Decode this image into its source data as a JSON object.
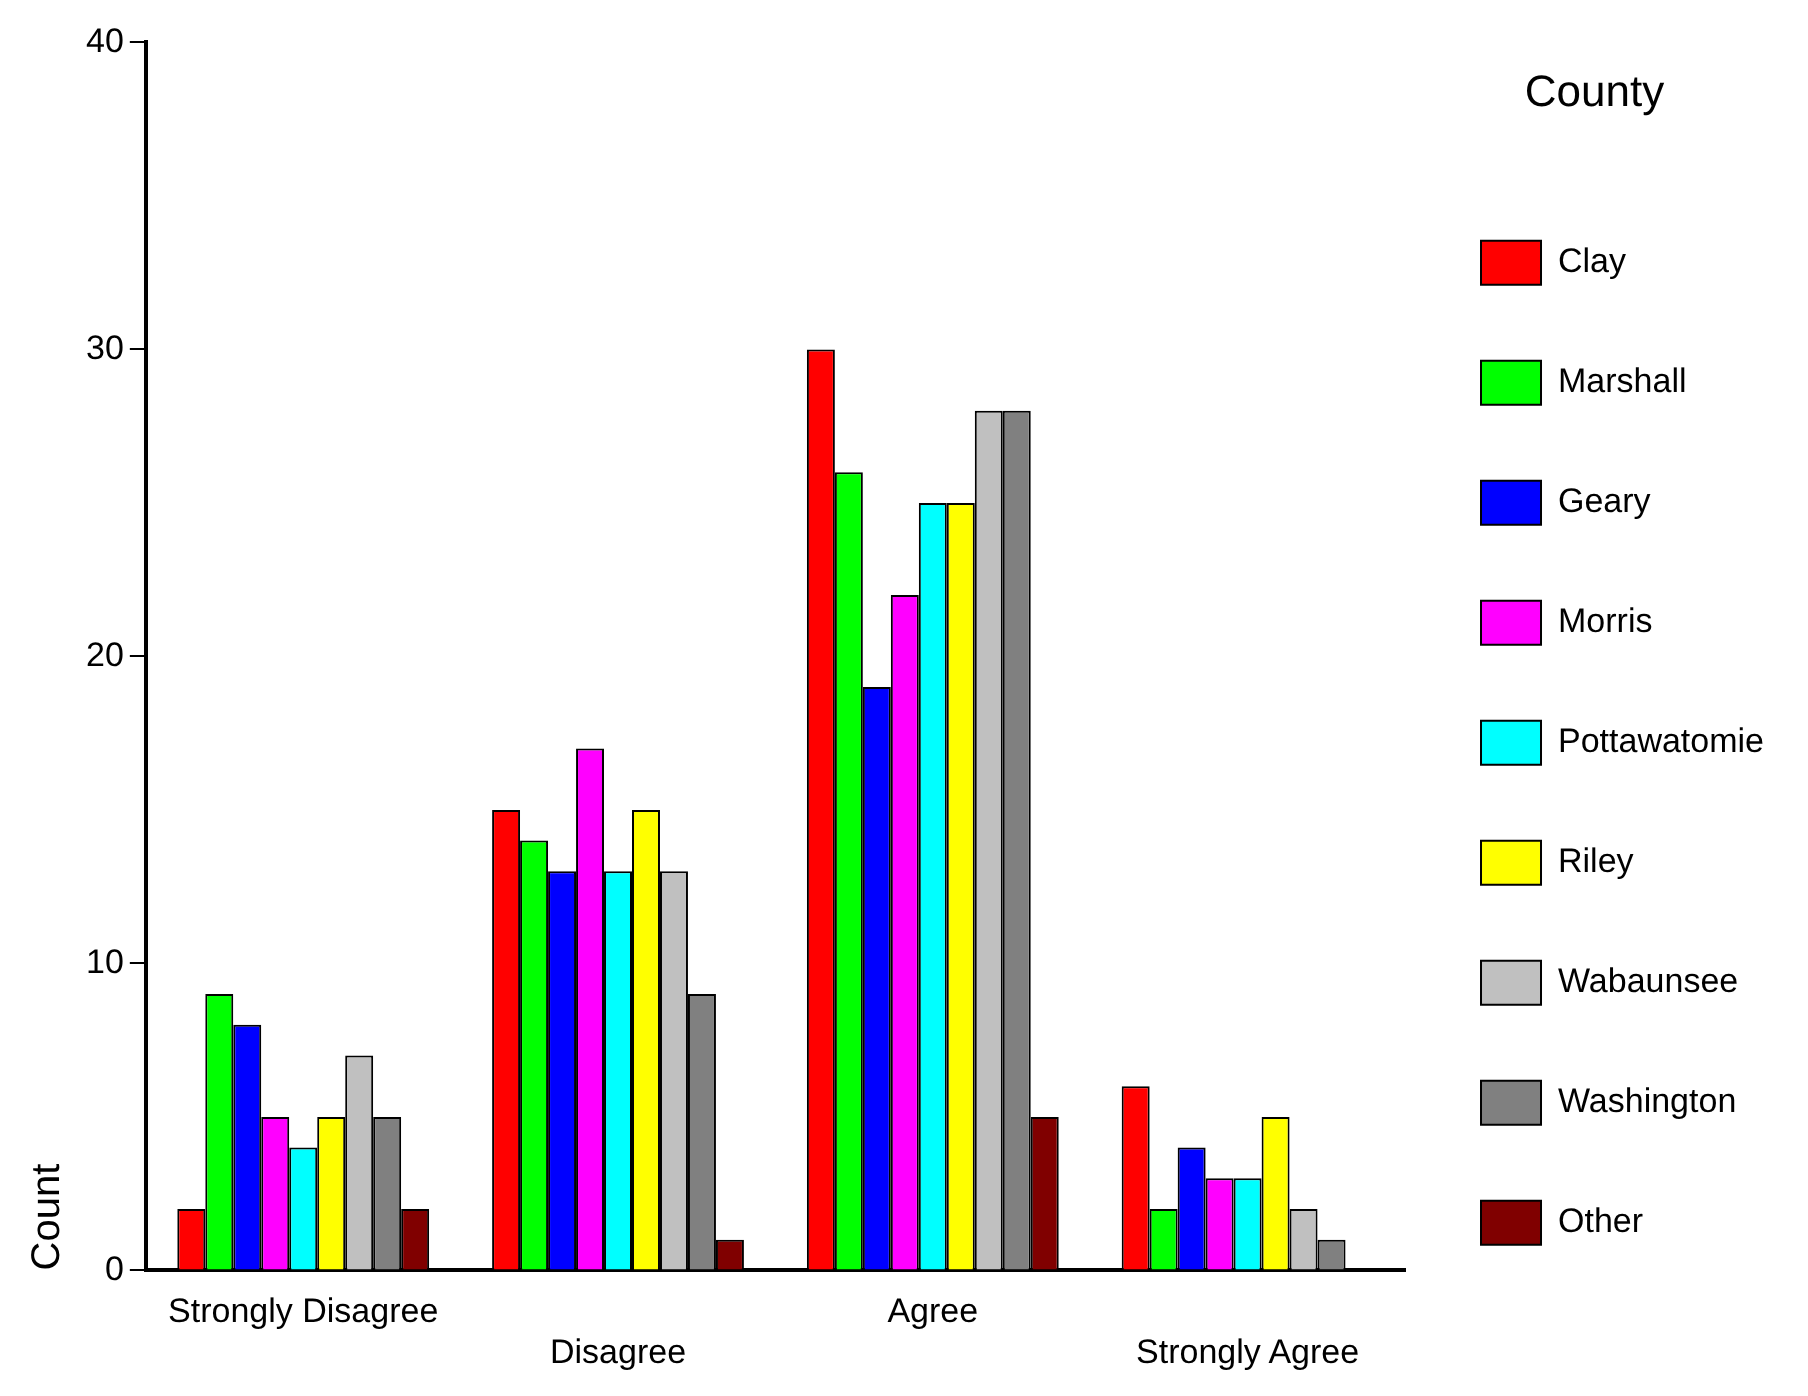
{
  "chart_data": {
    "type": "bar",
    "ylabel": "Count",
    "legend_title": "County",
    "legend": "right",
    "grid": false,
    "categories": [
      "Strongly Disagree",
      "Disagree",
      "Agree",
      "Strongly Agree"
    ],
    "ylim": [
      0,
      40
    ],
    "yticks": [
      0,
      10,
      20,
      30,
      40
    ],
    "series": [
      {
        "name": "Clay",
        "color": "#ff0000",
        "values": [
          2,
          15,
          30,
          6
        ]
      },
      {
        "name": "Marshall",
        "color": "#00ff00",
        "values": [
          9,
          14,
          26,
          2
        ]
      },
      {
        "name": "Geary",
        "color": "#0000ff",
        "values": [
          8,
          13,
          19,
          4
        ]
      },
      {
        "name": "Morris",
        "color": "#ff00ff",
        "values": [
          5,
          17,
          22,
          3
        ]
      },
      {
        "name": "Pottawatomie",
        "color": "#00ffff",
        "values": [
          4,
          13,
          25,
          3
        ]
      },
      {
        "name": "Riley",
        "color": "#ffff00",
        "values": [
          5,
          15,
          25,
          5
        ]
      },
      {
        "name": "Wabaunsee",
        "color": "#c0c0c0",
        "values": [
          7,
          13,
          28,
          2
        ]
      },
      {
        "name": "Washington",
        "color": "#808080",
        "values": [
          5,
          9,
          28,
          1
        ]
      },
      {
        "name": "Other",
        "color": "#800000",
        "values": [
          2,
          1,
          5,
          0
        ]
      }
    ]
  }
}
